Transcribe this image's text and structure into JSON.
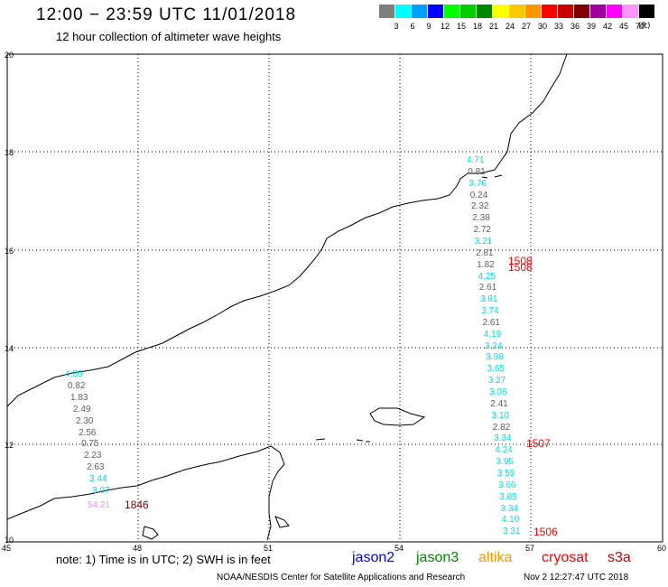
{
  "header": {
    "title": "12:00 − 23:59 UTC 11/01/2018",
    "subtitle": "12 hour collection of altimeter wave heights"
  },
  "legend": {
    "colors": [
      "#7f7f7f",
      "#00ffff",
      "#00a0ff",
      "#0000ff",
      "#00ff00",
      "#00cc00",
      "#008800",
      "#ffff00",
      "#ffc800",
      "#ff9600",
      "#ff0000",
      "#c80000",
      "#800000",
      "#a000a0",
      "#ff00ff",
      "#ff96ff",
      "#000000"
    ],
    "labels": [
      "3",
      "6",
      "9",
      "12",
      "15",
      "18",
      "21",
      "24",
      "27",
      "30",
      "33",
      "36",
      "39",
      "42",
      "45",
      "70"
    ],
    "unit": "(ft)"
  },
  "axes": {
    "x_ticks": [
      "45",
      "48",
      "51",
      "54",
      "57",
      "60"
    ],
    "y_ticks": [
      "20",
      "18",
      "16",
      "14",
      "12",
      "10"
    ]
  },
  "labels": {
    "left_track": [
      {
        "text": "4.80",
        "color": "#00e0e0"
      },
      {
        "text": "0.82",
        "color": "#606060"
      },
      {
        "text": "1.83",
        "color": "#606060"
      },
      {
        "text": "2.49",
        "color": "#606060"
      },
      {
        "text": "2.30",
        "color": "#606060"
      },
      {
        "text": "2.56",
        "color": "#606060"
      },
      {
        "text": "0.75",
        "color": "#606060"
      },
      {
        "text": "2.23",
        "color": "#606060"
      },
      {
        "text": "2.63",
        "color": "#606060"
      },
      {
        "text": "3.44",
        "color": "#00e0e0"
      },
      {
        "text": "3.07",
        "color": "#00e0e0"
      }
    ],
    "left_extra": [
      {
        "text": "54.21",
        "color": "#ff88ff"
      },
      {
        "text": "1846",
        "color": "#800000"
      }
    ],
    "right_track": [
      {
        "text": "4.71",
        "color": "#00e0e0"
      },
      {
        "text": "0.81",
        "color": "#606060"
      },
      {
        "text": "3.76",
        "color": "#00e0e0"
      },
      {
        "text": "0.24",
        "color": "#606060"
      },
      {
        "text": "2.32",
        "color": "#606060"
      },
      {
        "text": "2.38",
        "color": "#606060"
      },
      {
        "text": "2.72",
        "color": "#606060"
      },
      {
        "text": "3.21",
        "color": "#00e0e0"
      },
      {
        "text": "2.81",
        "color": "#606060"
      },
      {
        "text": "1.82",
        "color": "#606060"
      },
      {
        "text": "4.25",
        "color": "#00e0e0"
      },
      {
        "text": "2.61",
        "color": "#606060"
      },
      {
        "text": "3.81",
        "color": "#00e0e0"
      },
      {
        "text": "3.74",
        "color": "#00e0e0"
      },
      {
        "text": "2.61",
        "color": "#606060"
      },
      {
        "text": "4.19",
        "color": "#00e0e0"
      },
      {
        "text": "3.24",
        "color": "#00e0e0"
      },
      {
        "text": "3.98",
        "color": "#00e0e0"
      },
      {
        "text": "3.65",
        "color": "#00e0e0"
      },
      {
        "text": "3.27",
        "color": "#00e0e0"
      },
      {
        "text": "3.08",
        "color": "#00e0e0"
      },
      {
        "text": "2.41",
        "color": "#606060"
      },
      {
        "text": "3.10",
        "color": "#00e0e0"
      },
      {
        "text": "2.82",
        "color": "#606060"
      },
      {
        "text": "3.34",
        "color": "#00e0e0"
      },
      {
        "text": "4.24",
        "color": "#00e0e0"
      },
      {
        "text": "3.95",
        "color": "#00e0e0"
      },
      {
        "text": "3.59",
        "color": "#00e0e0"
      },
      {
        "text": "3.66",
        "color": "#00e0e0"
      },
      {
        "text": "3.85",
        "color": "#00e0e0"
      },
      {
        "text": "3.34",
        "color": "#00e0e0"
      },
      {
        "text": "4.10",
        "color": "#00e0e0"
      },
      {
        "text": "3.31",
        "color": "#00e0e0"
      }
    ],
    "times": [
      {
        "text": "1508",
        "color": "#ff0000"
      },
      {
        "text": "1508",
        "color": "#ff0000"
      },
      {
        "text": "1507",
        "color": "#ff0000"
      },
      {
        "text": "1506",
        "color": "#ff0000"
      }
    ]
  },
  "footer": {
    "note": "note:  1) Time is in UTC;  2) SWH is in feet",
    "missions": [
      {
        "text": "jason2",
        "color": "#0000ff"
      },
      {
        "text": "jason3",
        "color": "#008800"
      },
      {
        "text": "altika",
        "color": "#ff9600"
      },
      {
        "text": "cryosat",
        "color": "#ff0000"
      },
      {
        "text": "s3a",
        "color": "#c80000"
      }
    ],
    "credit": "NOAA/NESDIS Center for Satellite Applications and Research",
    "timestamp": "Nov  2 12:27:47 UTC 2018"
  }
}
